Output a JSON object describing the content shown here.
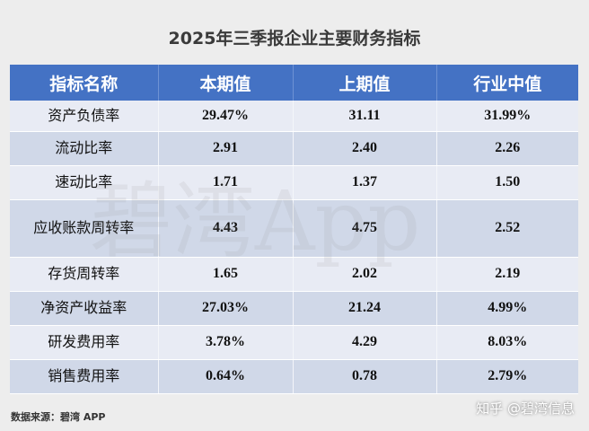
{
  "title": "2025年三季报企业主要财务指标",
  "watermark": "碧湾App",
  "table": {
    "headers": [
      "指标名称",
      "本期值",
      "上期值",
      "行业中值"
    ],
    "rows": [
      {
        "name": "资产负债率",
        "current": "29.47%",
        "previous": "31.11",
        "median": "31.99%"
      },
      {
        "name": "流动比率",
        "current": "2.91",
        "previous": "2.40",
        "median": "2.26"
      },
      {
        "name": "速动比率",
        "current": "1.71",
        "previous": "1.37",
        "median": "1.50"
      },
      {
        "name": "应收账款周转率",
        "current": "4.43",
        "previous": "4.75",
        "median": "2.52"
      },
      {
        "name": "存货周转率",
        "current": "1.65",
        "previous": "2.02",
        "median": "2.19"
      },
      {
        "name": "净资产收益率",
        "current": "27.03%",
        "previous": "21.24",
        "median": "4.99%"
      },
      {
        "name": "研发费用率",
        "current": "3.78%",
        "previous": "4.29",
        "median": "8.03%"
      },
      {
        "name": "销售费用率",
        "current": "0.64%",
        "previous": "0.78",
        "median": "2.79%"
      }
    ]
  },
  "source": "数据来源：碧湾 APP",
  "credit": "知乎 @碧湾信息",
  "colors": {
    "header_bg": "#4472c4",
    "row_light": "#e8ebf4",
    "row_dark": "#d0d8e8"
  }
}
